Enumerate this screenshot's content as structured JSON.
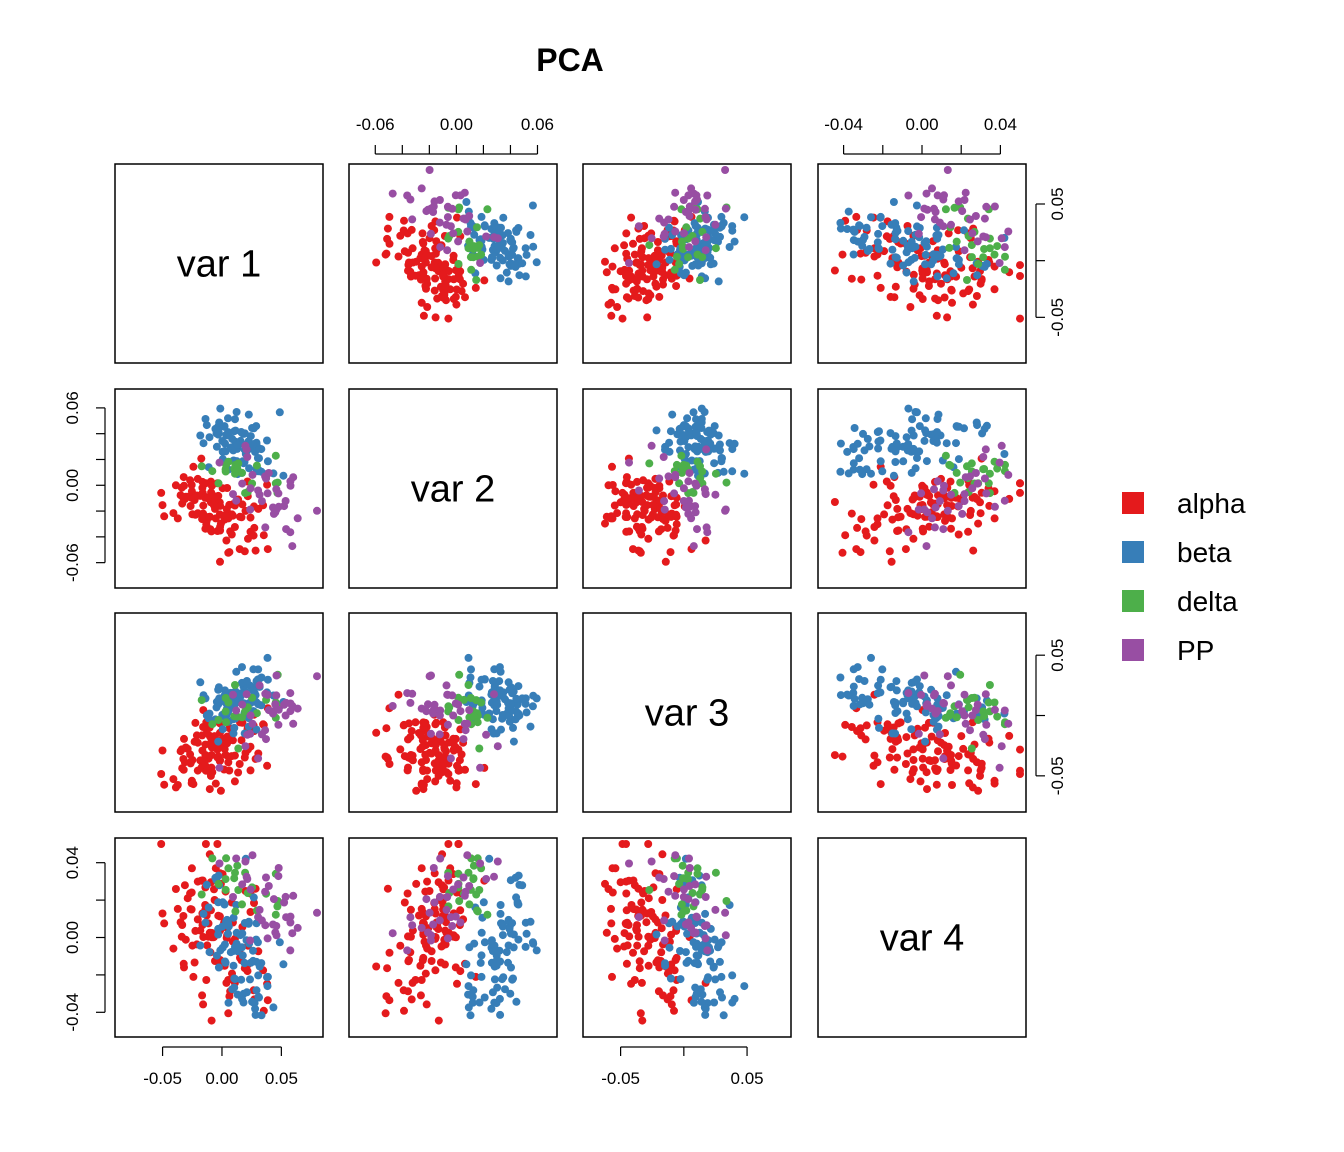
{
  "chart_data": {
    "type": "scatter",
    "title": "PCA",
    "variables": [
      "var 1",
      "var 2",
      "var 3",
      "var 4"
    ],
    "axis_ranges": {
      "var 1": [
        -0.085,
        0.08
      ],
      "var 2": [
        -0.075,
        0.07
      ],
      "var 3": [
        -0.075,
        0.08
      ],
      "var 4": [
        -0.05,
        0.05
      ]
    },
    "ticks": {
      "top": [
        {
          "column": "var 2",
          "values": [
            -0.06,
            -0.04,
            -0.02,
            0.0,
            0.02,
            0.04,
            0.06
          ],
          "labels": [
            "-0.06",
            "",
            "",
            "0.00",
            "",
            "",
            "0.06"
          ]
        },
        {
          "column": "var 4",
          "values": [
            -0.04,
            -0.02,
            0.0,
            0.02,
            0.04
          ],
          "labels": [
            "-0.04",
            "",
            "0.00",
            "",
            "0.04"
          ]
        }
      ],
      "bottom": [
        {
          "column": "var 1",
          "values": [
            -0.05,
            0.0,
            0.05
          ],
          "labels": [
            "-0.05",
            "0.00",
            "0.05"
          ]
        },
        {
          "column": "var 3",
          "values": [
            -0.05,
            0.0,
            0.05
          ],
          "labels": [
            "-0.05",
            "",
            "0.05"
          ]
        }
      ],
      "left": [
        {
          "row": "var 2",
          "values": [
            -0.06,
            -0.04,
            -0.02,
            0.0,
            0.02,
            0.04,
            0.06
          ],
          "labels": [
            "-0.06",
            "",
            "",
            "0.00",
            "",
            "",
            "0.06"
          ]
        },
        {
          "row": "var 4",
          "values": [
            -0.04,
            -0.02,
            0.0,
            0.02,
            0.04
          ],
          "labels": [
            "-0.04",
            "",
            "0.00",
            "",
            "0.04"
          ]
        }
      ],
      "right": [
        {
          "row": "var 1",
          "values": [
            -0.05,
            0.0,
            0.05
          ],
          "labels": [
            "-0.05",
            "",
            "0.05"
          ]
        },
        {
          "row": "var 3",
          "values": [
            -0.05,
            0.0,
            0.05
          ],
          "labels": [
            "-0.05",
            "",
            "0.05"
          ]
        }
      ]
    },
    "series": [
      {
        "name": "alpha",
        "color": "#E41A1C",
        "centroid": [
          -0.005,
          -0.02,
          -0.03,
          0.0
        ],
        "spread": [
          0.028,
          0.02,
          0.022,
          0.03
        ]
      },
      {
        "name": "beta",
        "color": "#377EB8",
        "centroid": [
          0.015,
          0.032,
          0.015,
          -0.005
        ],
        "spread": [
          0.022,
          0.018,
          0.018,
          0.028
        ]
      },
      {
        "name": "delta",
        "color": "#4DAF4A",
        "centroid": [
          0.02,
          0.005,
          0.0,
          0.025
        ],
        "spread": [
          0.025,
          0.02,
          0.02,
          0.015
        ]
      },
      {
        "name": "PP",
        "color": "#984EA3",
        "centroid": [
          0.035,
          -0.005,
          0.0,
          0.02
        ],
        "spread": [
          0.025,
          0.025,
          0.025,
          0.018
        ]
      }
    ],
    "legend_position": "right",
    "grid": false
  }
}
